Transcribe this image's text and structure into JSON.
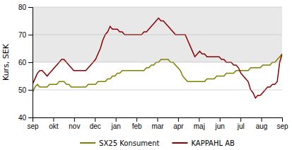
{
  "chart_data": {
    "type": "line",
    "ylabel": "Kurs, SEK",
    "x": [
      0,
      0.1165,
      0.233,
      0.3495,
      0.466,
      0.5825,
      0.699,
      0.8155,
      0.932,
      1.0485,
      1.165,
      1.2816,
      1.3981,
      1.5146,
      1.6311,
      1.7476,
      1.8641,
      1.9806,
      2.0971,
      2.2136,
      2.3301,
      2.4466,
      2.5631,
      2.6796,
      2.7961,
      2.9126,
      3.0291,
      3.1456,
      3.2621,
      3.3786,
      3.4951,
      3.6117,
      3.7282,
      3.8447,
      3.9612,
      4.0777,
      4.1942,
      4.3107,
      4.4272,
      4.5437,
      4.6602,
      4.7767,
      4.8932,
      5.0097,
      5.1262,
      5.2427,
      5.3592,
      5.4757,
      5.5922,
      5.7087,
      5.8252,
      5.9417,
      6.0583,
      6.1748,
      6.2913,
      6.4078,
      6.5243,
      6.6408,
      6.7573,
      6.8738,
      6.9903,
      7.1068,
      7.2233,
      7.3398,
      7.4563,
      7.5728,
      7.6893,
      7.8058,
      7.9223,
      8.0388,
      8.1553,
      8.2718,
      8.3883,
      8.5049,
      8.6214,
      8.7379,
      8.8544,
      8.9709,
      9.0874,
      9.2039,
      9.3204,
      9.4369,
      9.5534,
      9.6699,
      9.7864,
      9.9029,
      10.0194,
      10.1359,
      10.2524,
      10.3689,
      10.4854,
      10.6019,
      10.7184,
      10.835,
      10.9515,
      11.068,
      11.1845,
      11.301,
      11.4175,
      11.534,
      11.6505,
      11.767,
      11.8835,
      12
    ],
    "xlim": [
      0,
      12
    ],
    "xticks": [
      {
        "value": 0,
        "label": "sep"
      },
      {
        "value": 1,
        "label": "okt"
      },
      {
        "value": 2,
        "label": "nov"
      },
      {
        "value": 3,
        "label": "dec"
      },
      {
        "value": 4,
        "label": "jan"
      },
      {
        "value": 5,
        "label": "feb"
      },
      {
        "value": 6,
        "label": "mar"
      },
      {
        "value": 7,
        "label": "apr"
      },
      {
        "value": 8,
        "label": "maj"
      },
      {
        "value": 9,
        "label": "jun"
      },
      {
        "value": 10,
        "label": "jul"
      },
      {
        "value": 11,
        "label": "aug"
      },
      {
        "value": 12,
        "label": "sep"
      }
    ],
    "ylim": [
      40,
      80
    ],
    "yticks": [
      40,
      50,
      60,
      70,
      80
    ],
    "shaded_range": [
      60,
      80
    ],
    "grid": true,
    "legend": "bottom",
    "series": [
      {
        "name": "SX25 Konsument",
        "color": "#808000",
        "values": [
          49,
          51,
          52,
          51,
          51,
          51,
          51,
          52,
          52,
          52,
          52,
          53,
          53,
          53,
          52,
          52,
          51,
          51,
          51,
          51,
          51,
          51,
          51,
          52,
          52,
          52,
          52,
          53,
          53,
          53,
          53,
          54,
          54,
          55,
          55,
          56,
          56,
          57,
          57,
          57,
          57,
          57,
          57,
          57,
          57,
          57,
          57,
          58,
          58,
          59,
          59,
          60,
          60,
          61,
          61,
          61,
          61,
          60,
          60,
          59,
          58,
          57,
          55,
          54,
          53,
          53,
          53,
          53,
          53,
          53,
          53,
          53,
          54,
          54,
          54,
          54,
          55,
          55,
          55,
          55,
          56,
          56,
          56,
          56,
          57,
          57,
          57,
          57,
          57,
          57,
          58,
          58,
          58,
          58,
          58,
          59,
          59,
          59,
          59,
          60,
          60,
          61,
          62,
          63
        ]
      },
      {
        "name": "KAPPAHL AB",
        "color": "#8b0000",
        "values": [
          52,
          54,
          56,
          57,
          57,
          56,
          55,
          56,
          57,
          58,
          59,
          60,
          61,
          61,
          60,
          59,
          58,
          57,
          57,
          57,
          57,
          57,
          57,
          58,
          59,
          60,
          61,
          63,
          65,
          68,
          70,
          71,
          73,
          72,
          72,
          72,
          71,
          71,
          70,
          70,
          70,
          70,
          70,
          70,
          70,
          70,
          71,
          71,
          72,
          73,
          74,
          75,
          76,
          75,
          75,
          74,
          73,
          72,
          71,
          70,
          70,
          70,
          70,
          70,
          68,
          66,
          64,
          62,
          63,
          64,
          63,
          63,
          62,
          62,
          62,
          62,
          62,
          62,
          61,
          61,
          60,
          60,
          60,
          59,
          59,
          58,
          56,
          55,
          54,
          53,
          50,
          49,
          47,
          48,
          48,
          49,
          50,
          51,
          51,
          52,
          52,
          53,
          60,
          63
        ]
      }
    ]
  }
}
